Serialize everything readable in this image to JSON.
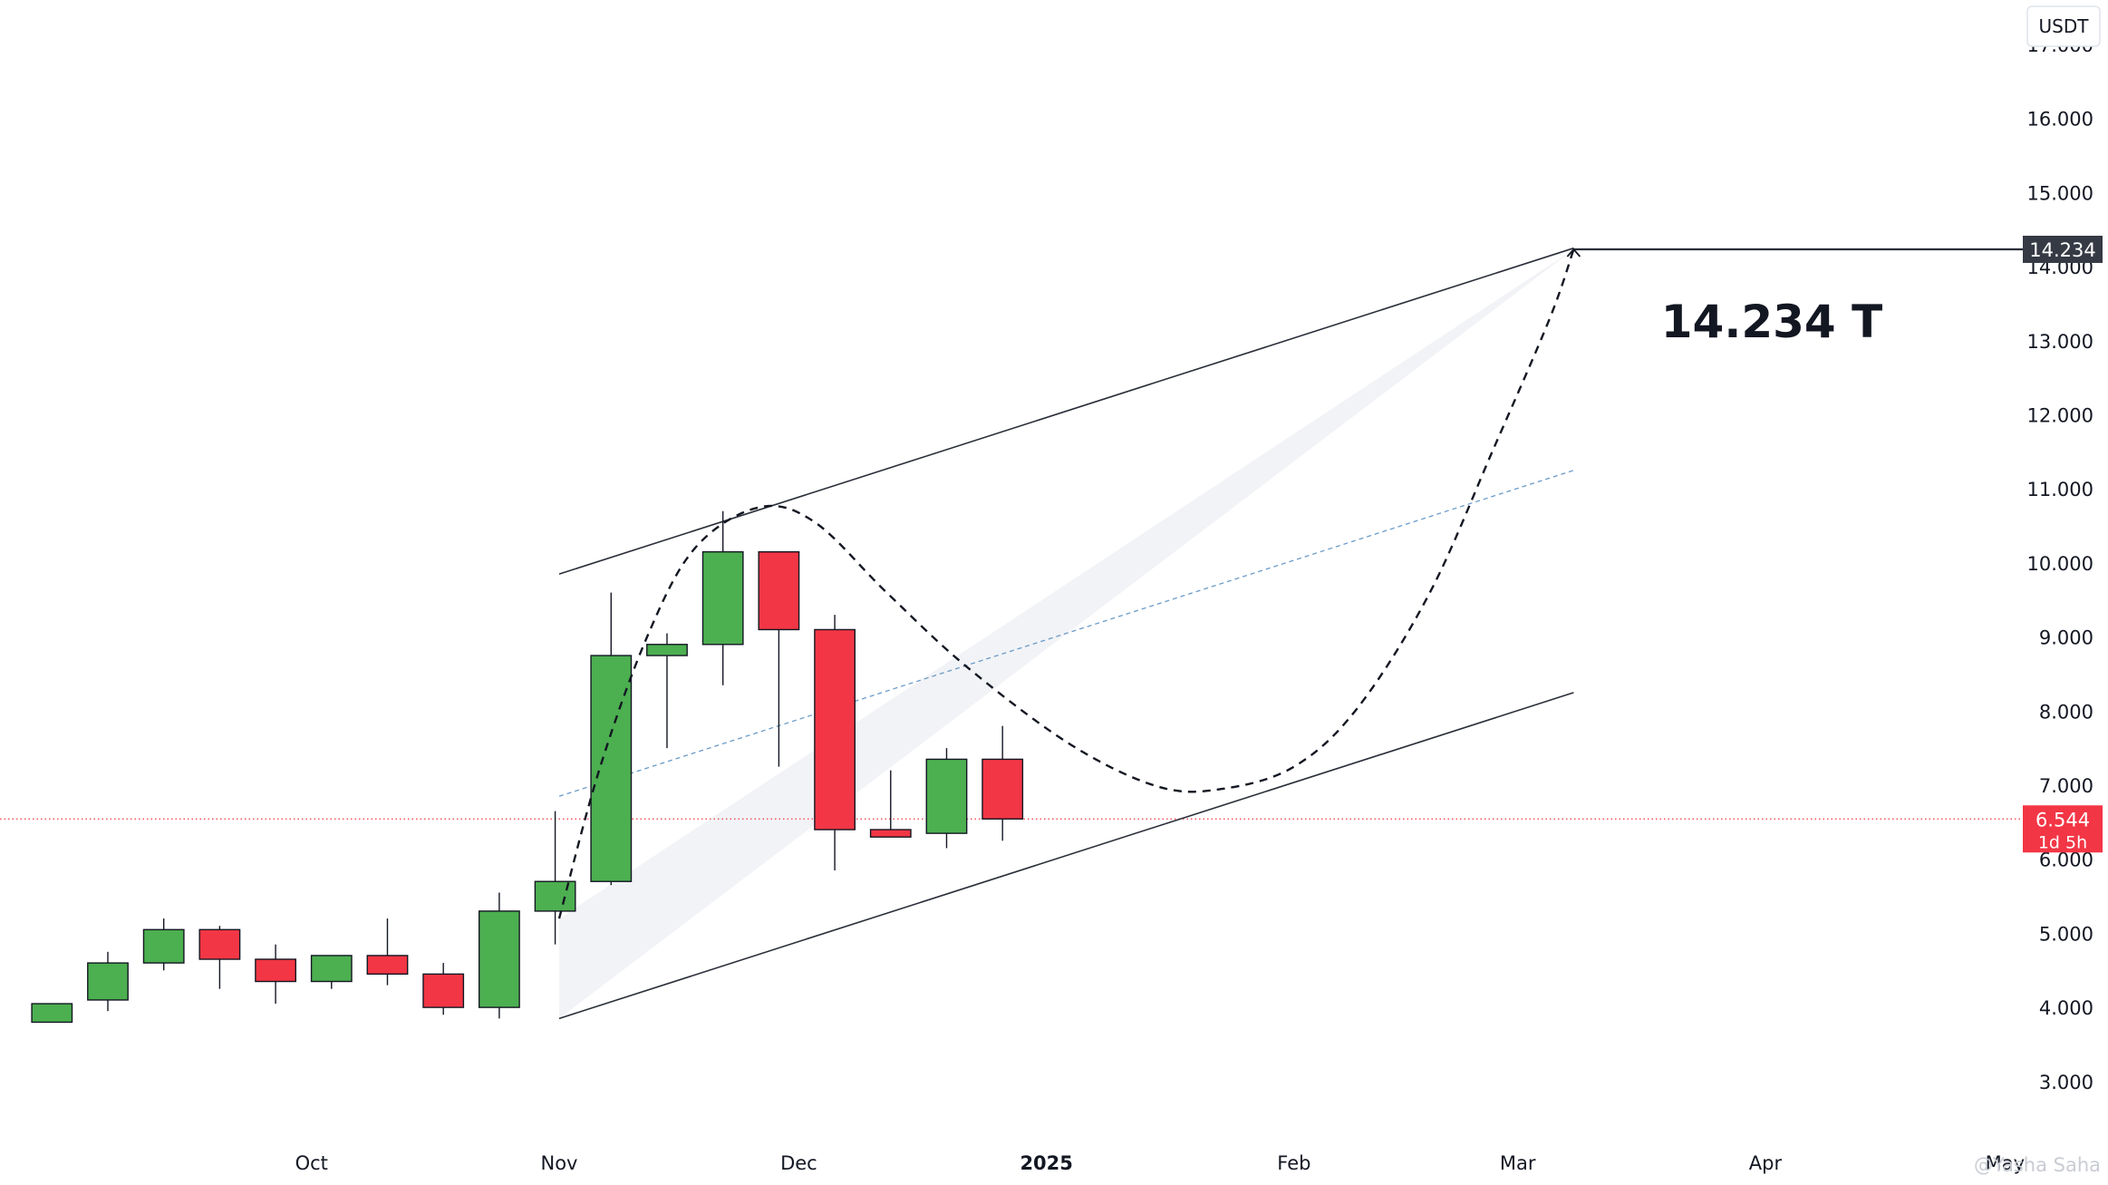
{
  "chart_data": {
    "type": "candlestick",
    "interval": "weekly",
    "currency_label": "USDT",
    "y_axis": {
      "ticks": [
        "3.000",
        "4.000",
        "5.000",
        "6.000",
        "7.000",
        "8.000",
        "9.000",
        "10.000",
        "11.000",
        "12.000",
        "13.000",
        "14.000",
        "15.000",
        "16.000",
        "17.000"
      ],
      "tick_values": [
        3,
        4,
        5,
        6,
        7,
        8,
        9,
        10,
        11,
        12,
        13,
        14,
        15,
        16,
        17
      ],
      "ylim": [
        2.3,
        17.6
      ]
    },
    "x_axis": {
      "labels": [
        {
          "text": "Oct",
          "date": "2024-10-01",
          "bold": false
        },
        {
          "text": "Nov",
          "date": "2024-11-01",
          "bold": false
        },
        {
          "text": "Dec",
          "date": "2024-12-01",
          "bold": false
        },
        {
          "text": "2025",
          "date": "2025-01-01",
          "bold": true
        },
        {
          "text": "Feb",
          "date": "2025-02-01",
          "bold": false
        },
        {
          "text": "Mar",
          "date": "2025-03-01",
          "bold": false
        },
        {
          "text": "Apr",
          "date": "2025-04-01",
          "bold": false
        },
        {
          "text": "May",
          "date": "2025-05-01",
          "bold": false
        }
      ],
      "xlim": [
        "2024-08-23",
        "2025-05-03"
      ]
    },
    "candles": [
      {
        "date": "2024-08-26",
        "open": 3.8,
        "high": 4.05,
        "low": 3.8,
        "close": 4.05
      },
      {
        "date": "2024-09-02",
        "open": 4.1,
        "high": 4.75,
        "low": 3.95,
        "close": 4.6
      },
      {
        "date": "2024-09-09",
        "open": 4.6,
        "high": 5.2,
        "low": 4.5,
        "close": 5.05
      },
      {
        "date": "2024-09-16",
        "open": 5.05,
        "high": 5.1,
        "low": 4.25,
        "close": 4.65
      },
      {
        "date": "2024-09-23",
        "open": 4.65,
        "high": 4.85,
        "low": 4.05,
        "close": 4.35
      },
      {
        "date": "2024-09-30",
        "open": 4.35,
        "high": 4.7,
        "low": 4.25,
        "close": 4.7
      },
      {
        "date": "2024-10-07",
        "open": 4.7,
        "high": 5.2,
        "low": 4.3,
        "close": 4.45
      },
      {
        "date": "2024-10-14",
        "open": 4.45,
        "high": 4.6,
        "low": 3.9,
        "close": 4.0
      },
      {
        "date": "2024-10-21",
        "open": 4.0,
        "high": 5.55,
        "low": 3.85,
        "close": 5.3
      },
      {
        "date": "2024-10-28",
        "open": 5.3,
        "high": 6.65,
        "low": 4.85,
        "close": 5.7
      },
      {
        "date": "2024-11-04",
        "open": 5.7,
        "high": 9.6,
        "low": 5.65,
        "close": 8.75
      },
      {
        "date": "2024-11-11",
        "open": 8.75,
        "high": 9.05,
        "low": 7.5,
        "close": 8.9
      },
      {
        "date": "2024-11-18",
        "open": 8.9,
        "high": 10.7,
        "low": 8.35,
        "close": 10.15
      },
      {
        "date": "2024-11-25",
        "open": 10.15,
        "high": 10.15,
        "low": 7.25,
        "close": 9.1
      },
      {
        "date": "2024-12-02",
        "open": 9.1,
        "high": 9.3,
        "low": 5.85,
        "close": 6.4
      },
      {
        "date": "2024-12-09",
        "open": 6.4,
        "high": 7.2,
        "low": 6.3,
        "close": 6.3
      },
      {
        "date": "2024-12-16",
        "open": 6.35,
        "high": 7.5,
        "low": 6.15,
        "close": 7.35
      },
      {
        "date": "2024-12-23",
        "open": 7.35,
        "high": 7.8,
        "low": 6.25,
        "close": 6.544
      }
    ],
    "annotations": {
      "target_label": "14.234 T",
      "target_price": 14.234,
      "target_price_label": "14.234",
      "current_price": 6.544,
      "current_price_label": "6.544",
      "countdown_label": "1d 5h",
      "target_line_from_date": "2025-03-08",
      "channel_upper": {
        "from": {
          "date": "2024-11-01",
          "price": 9.85
        },
        "to": {
          "date": "2025-03-08",
          "price": 14.25
        }
      },
      "channel_lower": {
        "from": {
          "date": "2024-11-01",
          "price": 3.85
        },
        "to": {
          "date": "2025-03-08",
          "price": 8.25
        }
      },
      "channel_mid": {
        "from": {
          "date": "2024-11-01",
          "price": 6.85
        },
        "to": {
          "date": "2025-03-08",
          "price": 11.25
        }
      },
      "projection_path": [
        {
          "date": "2024-11-01",
          "price": 5.2
        },
        {
          "date": "2024-11-06",
          "price": 7.2
        },
        {
          "date": "2024-11-12",
          "price": 9.0
        },
        {
          "date": "2024-11-18",
          "price": 10.2
        },
        {
          "date": "2024-11-26",
          "price": 10.75
        },
        {
          "date": "2024-12-03",
          "price": 10.55
        },
        {
          "date": "2024-12-12",
          "price": 9.6
        },
        {
          "date": "2024-12-22",
          "price": 8.6
        },
        {
          "date": "2025-01-04",
          "price": 7.55
        },
        {
          "date": "2025-01-15",
          "price": 6.98
        },
        {
          "date": "2025-01-23",
          "price": 6.95
        },
        {
          "date": "2025-02-01",
          "price": 7.25
        },
        {
          "date": "2025-02-09",
          "price": 8.05
        },
        {
          "date": "2025-02-18",
          "price": 9.6
        },
        {
          "date": "2025-02-26",
          "price": 11.55
        },
        {
          "date": "2025-03-05",
          "price": 13.3
        },
        {
          "date": "2025-03-08",
          "price": 14.234
        }
      ],
      "shaded_triangle": [
        {
          "date": "2024-11-01",
          "price": 3.85
        },
        {
          "date": "2025-03-08",
          "price": 14.234
        },
        {
          "date": "2024-11-01",
          "price": 5.2
        }
      ]
    },
    "watermark": "@Yasha Saha"
  },
  "colors": {
    "up": "#4caf50",
    "down": "#f23645",
    "wick": "#131722",
    "line": "#2a2e39",
    "midline": "#6a9bc9",
    "shade": "#eeeff3",
    "target_badge": "#363a45",
    "price_badge": "#f23645",
    "gridless_background": "#ffffff"
  }
}
